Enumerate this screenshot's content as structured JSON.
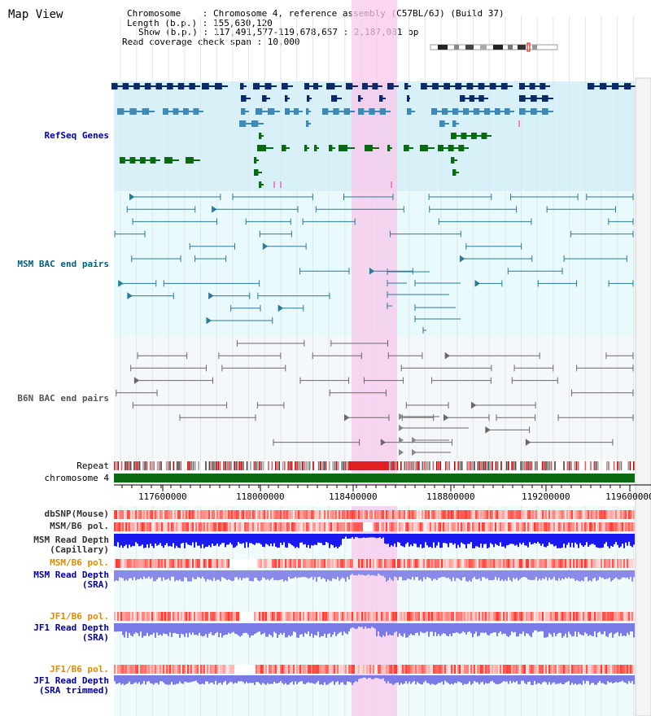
{
  "title": "Map View",
  "info": {
    "chromosome": "Chromosome    : Chromosome 4, reference assembly (C57BL/6J) (Build 37)",
    "length": "Length (b.p.) : 155,630,120",
    "show": "Show (b.p.) : 117,491,577-119,678,657 : 2,187,081 bp",
    "coverage": "Read coverage check span : 10,000"
  },
  "tracks": {
    "refseq": "RefSeq Genes",
    "msm_bac": "MSM BAC end pairs",
    "b6n_bac": "B6N BAC end pairs",
    "repeat": "Repeat",
    "chromosome": "chromosome 4",
    "dbsnp": "dbSNP(Mouse)",
    "msm_b6_pol_1": "MSM/B6 pol.",
    "msm_depth_cap": "MSM Read Depth\n(Capillary)",
    "msm_b6_pol_2": "MSM/B6 pol.",
    "msm_depth_sra": "MSM Read Depth\n(SRA)",
    "jf1_b6_pol_1": "JF1/B6 pol.",
    "jf1_depth_sra": "JF1 Read Depth\n(SRA)",
    "jf1_b6_pol_2": "JF1/B6 pol.",
    "jf1_depth_trim": "JF1 Read Depth\n(SRA trimmed)"
  },
  "axis": {
    "ticks": [
      "117600000",
      "118000000",
      "118400000",
      "118800000",
      "119200000",
      "119600000"
    ]
  },
  "colors": {
    "refseq_bg": "#d8f0f8",
    "msm_bg": "#e8fafc",
    "b6n_bg": "#f4f8fa",
    "highlight": "#f8c8ec",
    "gene_dark": "#0a2a6a",
    "gene_mid": "#3d8ab8",
    "gene_green": "#0a6a12",
    "chrom_green": "#0a6a12",
    "label_blue": "#0000a0",
    "label_teal": "#006080",
    "label_orange": "#e08a00"
  }
}
